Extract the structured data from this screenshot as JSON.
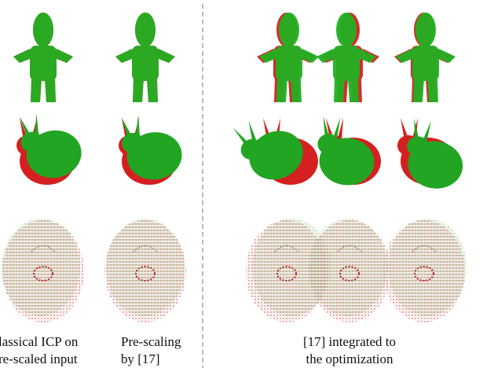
{
  "captions": [
    [
      "lassical ICP on",
      "re-scaled input"
    ],
    [
      "Pre-scaling",
      "by [17]"
    ],
    [
      "[17] integrated to",
      "the optimization"
    ]
  ]
}
